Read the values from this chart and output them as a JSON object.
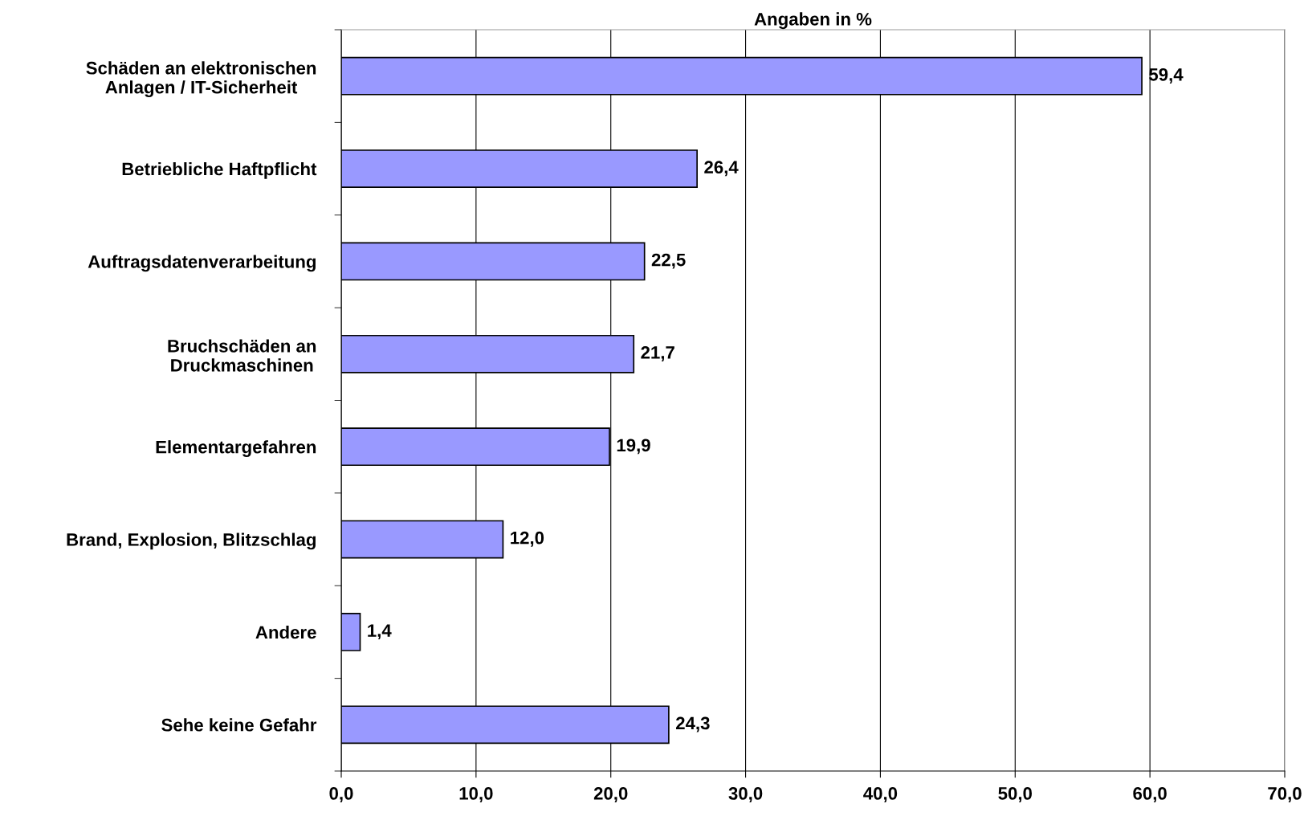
{
  "chart_data": {
    "type": "bar",
    "orientation": "horizontal",
    "title": "Angaben in %",
    "categories": [
      "Schäden an elektronischen\nAnlagen / IT-Sicherheit",
      "Betriebliche Haftpflicht",
      "Auftragsdatenverarbeitung",
      "Bruchschäden an\nDruckmaschinen",
      "Elementargefahren",
      "Brand, Explosion, Blitzschlag",
      "Andere",
      "Sehe keine Gefahr"
    ],
    "values": [
      59.4,
      26.4,
      22.5,
      21.7,
      19.9,
      12.0,
      1.4,
      24.3
    ],
    "value_labels": [
      "59,4",
      "26,4",
      "22,5",
      "21,7",
      "19,9",
      "12,0",
      "1,4",
      "24,3"
    ],
    "color": "#9999ff",
    "xlim": [
      0,
      70
    ],
    "xticks": [
      {
        "value": 0,
        "label": "0,0"
      },
      {
        "value": 10,
        "label": "10,0"
      },
      {
        "value": 20,
        "label": "20,0"
      },
      {
        "value": 30,
        "label": "30,0"
      },
      {
        "value": 40,
        "label": "40,0"
      },
      {
        "value": 50,
        "label": "50,0"
      },
      {
        "value": 60,
        "label": "60,0"
      },
      {
        "value": 70,
        "label": "70,0"
      }
    ],
    "grid": "x",
    "legend": false
  }
}
